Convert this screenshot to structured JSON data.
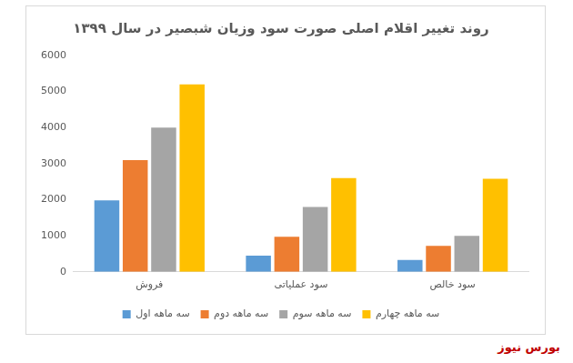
{
  "chart_data": {
    "type": "bar",
    "title": "روند تغییر اقلام اصلی صورت سود وزیان شبصیر در سال ۱۳۹۹",
    "categories": [
      "فروش",
      "سود عملیاتی",
      "سود خالص"
    ],
    "series": [
      {
        "name": "سه ماهه اول",
        "color": "#5b9bd5",
        "values": [
          1980,
          450,
          330
        ]
      },
      {
        "name": "سه ماهه دوم",
        "color": "#ed7d31",
        "values": [
          3100,
          970,
          720
        ]
      },
      {
        "name": "سه ماهه سوم",
        "color": "#a5a5a5",
        "values": [
          4000,
          1800,
          1000
        ]
      },
      {
        "name": "سه ماهه چهارم",
        "color": "#ffc000",
        "values": [
          5200,
          2600,
          2580
        ]
      }
    ],
    "ylim": [
      0,
      6000
    ],
    "yticks": [
      0,
      1000,
      2000,
      3000,
      4000,
      5000,
      6000
    ],
    "grid": false,
    "legend": "bottom",
    "source": "بورس نیوز"
  }
}
